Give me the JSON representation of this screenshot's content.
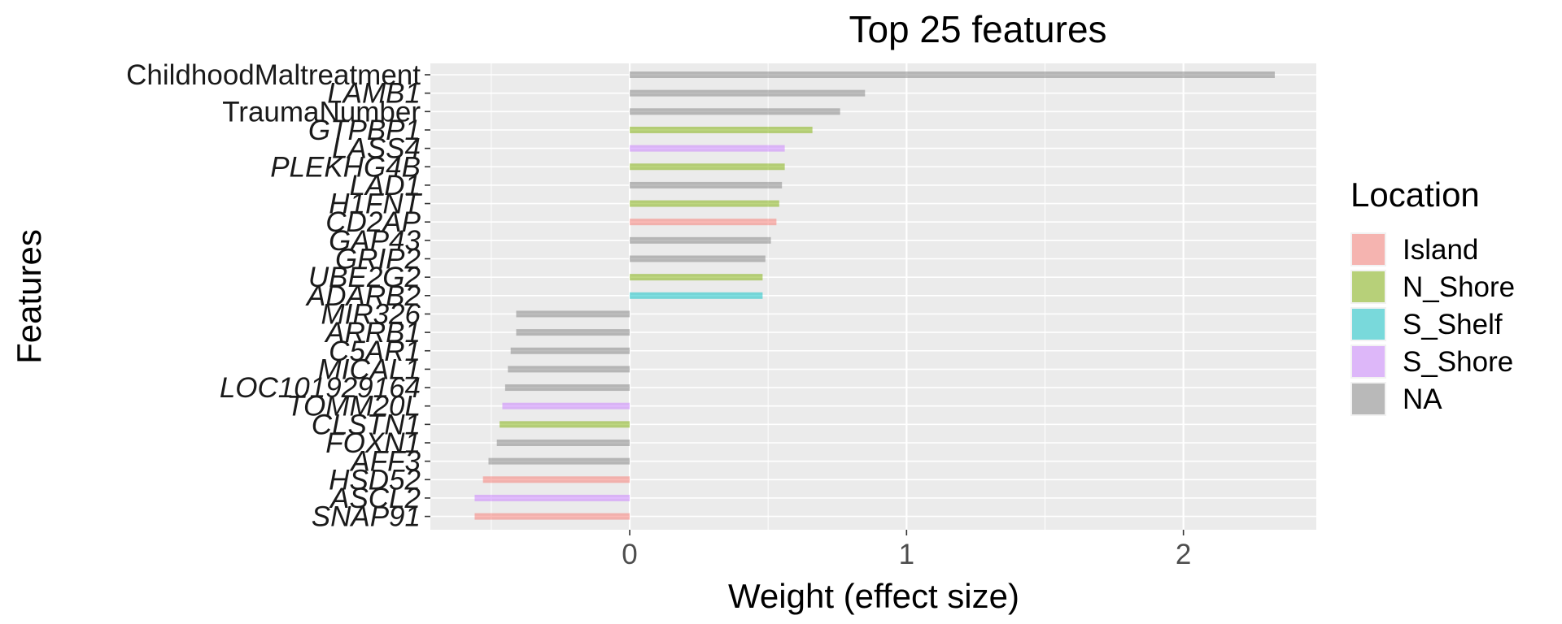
{
  "chart_data": {
    "type": "bar",
    "orientation": "horizontal",
    "title": "Top 25 features",
    "xlabel": "Weight (effect size)",
    "ylabel": "Features",
    "xlim": [
      -0.72,
      2.48
    ],
    "x_ticks": [
      0,
      1,
      2
    ],
    "x_tick_labels": [
      "0",
      "1",
      "2"
    ],
    "grid": true,
    "legend_position": "right",
    "legend": {
      "title": "Location",
      "entries": [
        {
          "label": "Island",
          "color": "#F8766D"
        },
        {
          "label": "N_Shore",
          "color": "#7CAE00"
        },
        {
          "label": "S_Shelf",
          "color": "#00BFC4"
        },
        {
          "label": "S_Shore",
          "color": "#C77CFF"
        },
        {
          "label": "NA",
          "color": "#7F7F7F"
        }
      ]
    },
    "bars": [
      {
        "feature": "ChildhoodMaltreatment",
        "value": 2.33,
        "location": "NA",
        "italic": false
      },
      {
        "feature": "LAMB1",
        "value": 0.85,
        "location": "NA",
        "italic": true
      },
      {
        "feature": "TraumaNumber",
        "value": 0.76,
        "location": "NA",
        "italic": false
      },
      {
        "feature": "GTPBP1",
        "value": 0.66,
        "location": "N_Shore",
        "italic": true
      },
      {
        "feature": "LASS4",
        "value": 0.56,
        "location": "S_Shore",
        "italic": true
      },
      {
        "feature": "PLEKHG4B",
        "value": 0.56,
        "location": "N_Shore",
        "italic": true
      },
      {
        "feature": "LAD1",
        "value": 0.55,
        "location": "NA",
        "italic": true
      },
      {
        "feature": "H1FNT",
        "value": 0.54,
        "location": "N_Shore",
        "italic": true
      },
      {
        "feature": "CD2AP",
        "value": 0.53,
        "location": "Island",
        "italic": true
      },
      {
        "feature": "GAP43",
        "value": 0.51,
        "location": "NA",
        "italic": true
      },
      {
        "feature": "GRIP2",
        "value": 0.49,
        "location": "NA",
        "italic": true
      },
      {
        "feature": "UBE2G2",
        "value": 0.48,
        "location": "N_Shore",
        "italic": true
      },
      {
        "feature": "ADARB2",
        "value": 0.48,
        "location": "S_Shelf",
        "italic": true
      },
      {
        "feature": "MIR326",
        "value": -0.41,
        "location": "NA",
        "italic": true
      },
      {
        "feature": "ARRB1",
        "value": -0.41,
        "location": "NA",
        "italic": true
      },
      {
        "feature": "C5AR1",
        "value": -0.43,
        "location": "NA",
        "italic": true
      },
      {
        "feature": "MICAL1",
        "value": -0.44,
        "location": "NA",
        "italic": true
      },
      {
        "feature": "LOC101929164",
        "value": -0.45,
        "location": "NA",
        "italic": true
      },
      {
        "feature": "TOMM20L",
        "value": -0.46,
        "location": "S_Shore",
        "italic": true
      },
      {
        "feature": "CLSTN1",
        "value": -0.47,
        "location": "N_Shore",
        "italic": true
      },
      {
        "feature": "FOXN1",
        "value": -0.48,
        "location": "NA",
        "italic": true
      },
      {
        "feature": "AFF3",
        "value": -0.51,
        "location": "NA",
        "italic": true
      },
      {
        "feature": "HSD52",
        "value": -0.53,
        "location": "Island",
        "italic": true
      },
      {
        "feature": "ASCL2",
        "value": -0.56,
        "location": "S_Shore",
        "italic": true
      },
      {
        "feature": "SNAP91",
        "value": -0.56,
        "location": "Island",
        "italic": true
      }
    ]
  }
}
